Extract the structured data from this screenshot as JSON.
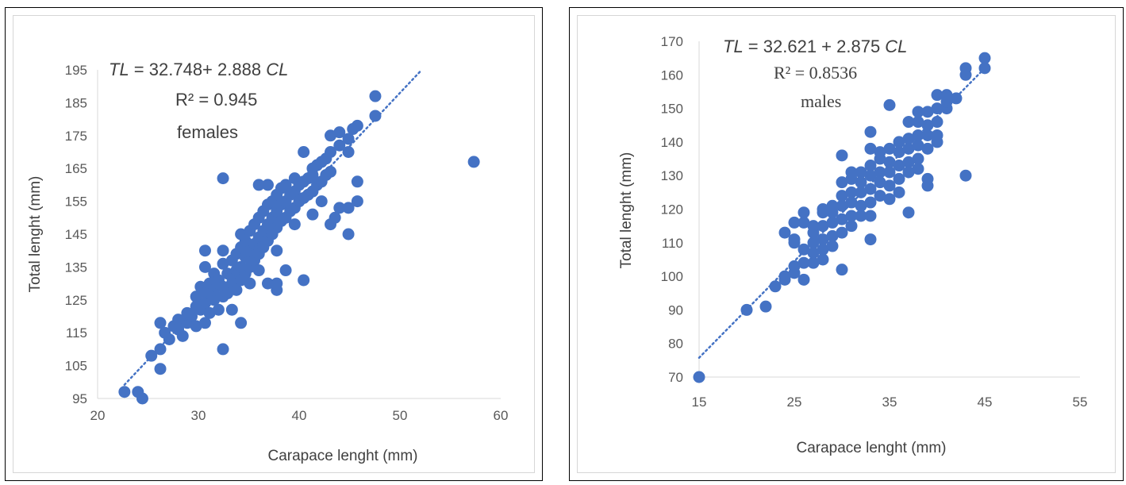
{
  "chart_data": [
    {
      "type": "scatter",
      "group": "females",
      "equation": {
        "prefix_var": "TL",
        "mid": " = 32.748+ 2.888 ",
        "suffix_var": "CL"
      },
      "r_squared": "R² = 0.945",
      "xlabel": "Carapace lenght (mm)",
      "ylabel": "Total lenght (mm)",
      "xlim": [
        20,
        65
      ],
      "ylim": [
        95,
        195
      ],
      "xticks": [
        "20",
        "30",
        "40",
        "50",
        "60"
      ],
      "yticks": [
        "95",
        "105",
        "115",
        "125",
        "135",
        "145",
        "155",
        "165",
        "175",
        "185",
        "195"
      ],
      "trendline": {
        "intercept": 32.748,
        "slope": 2.888,
        "x_range": [
          23,
          56
        ]
      },
      "color": "#4472c4",
      "points": [
        [
          23,
          97
        ],
        [
          24.5,
          97
        ],
        [
          25,
          95
        ],
        [
          26,
          108
        ],
        [
          27,
          104
        ],
        [
          27,
          110
        ],
        [
          27,
          118
        ],
        [
          27.5,
          115
        ],
        [
          28,
          113
        ],
        [
          28.5,
          117
        ],
        [
          29,
          116
        ],
        [
          29,
          119
        ],
        [
          29.5,
          114
        ],
        [
          30,
          118
        ],
        [
          30,
          121
        ],
        [
          30.5,
          120
        ],
        [
          31,
          117
        ],
        [
          31,
          123
        ],
        [
          31,
          126
        ],
        [
          31.5,
          122
        ],
        [
          31.5,
          129
        ],
        [
          32,
          118
        ],
        [
          32,
          124
        ],
        [
          32,
          127
        ],
        [
          32,
          135
        ],
        [
          32,
          140
        ],
        [
          32.5,
          121
        ],
        [
          32.5,
          130
        ],
        [
          33,
          125
        ],
        [
          33,
          128
        ],
        [
          33,
          133
        ],
        [
          33.5,
          122
        ],
        [
          33.5,
          131
        ],
        [
          34,
          126
        ],
        [
          34,
          129
        ],
        [
          34,
          136
        ],
        [
          34,
          140
        ],
        [
          34,
          110
        ],
        [
          34,
          162
        ],
        [
          34.5,
          127
        ],
        [
          34.5,
          133
        ],
        [
          35,
          130
        ],
        [
          35,
          132
        ],
        [
          35,
          137
        ],
        [
          35,
          122
        ],
        [
          35.5,
          128
        ],
        [
          35.5,
          134
        ],
        [
          35.5,
          139
        ],
        [
          36,
          131
        ],
        [
          36,
          135
        ],
        [
          36,
          141
        ],
        [
          36,
          118
        ],
        [
          36,
          145
        ],
        [
          36.5,
          133
        ],
        [
          36.5,
          138
        ],
        [
          36.5,
          143
        ],
        [
          37,
          135
        ],
        [
          37,
          140
        ],
        [
          37,
          146
        ],
        [
          37,
          130
        ],
        [
          37.5,
          137
        ],
        [
          37.5,
          142
        ],
        [
          37.5,
          148
        ],
        [
          38,
          139
        ],
        [
          38,
          144
        ],
        [
          38,
          150
        ],
        [
          38,
          134
        ],
        [
          38,
          160
        ],
        [
          38.5,
          141
        ],
        [
          38.5,
          146
        ],
        [
          38.5,
          152
        ],
        [
          39,
          143
        ],
        [
          39,
          148
        ],
        [
          39,
          154
        ],
        [
          39,
          130
        ],
        [
          39,
          160
        ],
        [
          39.5,
          145
        ],
        [
          39.5,
          150
        ],
        [
          39.5,
          155
        ],
        [
          40,
          147
        ],
        [
          40,
          152
        ],
        [
          40,
          157
        ],
        [
          40,
          128
        ],
        [
          40,
          130
        ],
        [
          40,
          140
        ],
        [
          40.5,
          149
        ],
        [
          40.5,
          154
        ],
        [
          40.5,
          159
        ],
        [
          41,
          150
        ],
        [
          41,
          155
        ],
        [
          41,
          160
        ],
        [
          41,
          134
        ],
        [
          41.5,
          152
        ],
        [
          41.5,
          157
        ],
        [
          42,
          153
        ],
        [
          42,
          158
        ],
        [
          42,
          162
        ],
        [
          42,
          148
        ],
        [
          42.5,
          155
        ],
        [
          42.5,
          160
        ],
        [
          43,
          156
        ],
        [
          43,
          161
        ],
        [
          43,
          131
        ],
        [
          43,
          170
        ],
        [
          43.5,
          157
        ],
        [
          43.5,
          162
        ],
        [
          44,
          158
        ],
        [
          44,
          163
        ],
        [
          44,
          165
        ],
        [
          44,
          151
        ],
        [
          44.5,
          160
        ],
        [
          44.5,
          166
        ],
        [
          45,
          161
        ],
        [
          45,
          167
        ],
        [
          45,
          155
        ],
        [
          45.5,
          163
        ],
        [
          45.5,
          168
        ],
        [
          46,
          164
        ],
        [
          46,
          170
        ],
        [
          46,
          148
        ],
        [
          46,
          175
        ],
        [
          46.5,
          150
        ],
        [
          47,
          172
        ],
        [
          47,
          176
        ],
        [
          47,
          153
        ],
        [
          48,
          145
        ],
        [
          48,
          153
        ],
        [
          48,
          170
        ],
        [
          48,
          174
        ],
        [
          48.5,
          177
        ],
        [
          49,
          155
        ],
        [
          49,
          161
        ],
        [
          49,
          178
        ],
        [
          51,
          181
        ],
        [
          51,
          187
        ],
        [
          62,
          167
        ]
      ]
    },
    {
      "type": "scatter",
      "group": "males",
      "equation": {
        "prefix_var": "TL",
        "mid": " = 32.621 + 2.875 ",
        "suffix_var": "CL"
      },
      "r_squared": "R² = 0.8536",
      "xlabel": "Carapace lenght (mm)",
      "ylabel": "Total lenght (mm)",
      "xlim": [
        15,
        55
      ],
      "ylim": [
        70,
        170
      ],
      "xticks": [
        "15",
        "25",
        "35",
        "45",
        "55"
      ],
      "yticks": [
        "70",
        "80",
        "90",
        "100",
        "110",
        "120",
        "130",
        "140",
        "150",
        "160",
        "170"
      ],
      "trendline": {
        "intercept": 32.621,
        "slope": 2.875,
        "x_range": [
          15,
          45
        ]
      },
      "color": "#4472c4",
      "points": [
        [
          15,
          70
        ],
        [
          20,
          90
        ],
        [
          22,
          91
        ],
        [
          23,
          97
        ],
        [
          24,
          99
        ],
        [
          24,
          100
        ],
        [
          24,
          113
        ],
        [
          25,
          101
        ],
        [
          25,
          103
        ],
        [
          25,
          110
        ],
        [
          25,
          111
        ],
        [
          25,
          116
        ],
        [
          26,
          99
        ],
        [
          26,
          104
        ],
        [
          26,
          108
        ],
        [
          26,
          116
        ],
        [
          26,
          119
        ],
        [
          27,
          104
        ],
        [
          27,
          107
        ],
        [
          27,
          110
        ],
        [
          27,
          113
        ],
        [
          27,
          115
        ],
        [
          28,
          105
        ],
        [
          28,
          108
        ],
        [
          28,
          111
        ],
        [
          28,
          115
        ],
        [
          28,
          119
        ],
        [
          28,
          120
        ],
        [
          29,
          109
        ],
        [
          29,
          112
        ],
        [
          29,
          116
        ],
        [
          29,
          119
        ],
        [
          29,
          121
        ],
        [
          30,
          102
        ],
        [
          30,
          113
        ],
        [
          30,
          117
        ],
        [
          30,
          121
        ],
        [
          30,
          124
        ],
        [
          30,
          128
        ],
        [
          30,
          136
        ],
        [
          31,
          115
        ],
        [
          31,
          118
        ],
        [
          31,
          122
        ],
        [
          31,
          125
        ],
        [
          31,
          129
        ],
        [
          31,
          131
        ],
        [
          32,
          118
        ],
        [
          32,
          121
        ],
        [
          32,
          125
        ],
        [
          32,
          128
        ],
        [
          32,
          131
        ],
        [
          33,
          111
        ],
        [
          33,
          118
        ],
        [
          33,
          122
        ],
        [
          33,
          126
        ],
        [
          33,
          130
        ],
        [
          33,
          133
        ],
        [
          33,
          138
        ],
        [
          33,
          143
        ],
        [
          34,
          124
        ],
        [
          34,
          128
        ],
        [
          34,
          131
        ],
        [
          34,
          135
        ],
        [
          34,
          137
        ],
        [
          35,
          123
        ],
        [
          35,
          127
        ],
        [
          35,
          131
        ],
        [
          35,
          134
        ],
        [
          35,
          138
        ],
        [
          35,
          151
        ],
        [
          36,
          125
        ],
        [
          36,
          129
        ],
        [
          36,
          133
        ],
        [
          36,
          137
        ],
        [
          36,
          140
        ],
        [
          37,
          119
        ],
        [
          37,
          131
        ],
        [
          37,
          134
        ],
        [
          37,
          138
        ],
        [
          37,
          141
        ],
        [
          37,
          146
        ],
        [
          38,
          132
        ],
        [
          38,
          135
        ],
        [
          38,
          139
        ],
        [
          38,
          142
        ],
        [
          38,
          146
        ],
        [
          38,
          149
        ],
        [
          39,
          127
        ],
        [
          39,
          129
        ],
        [
          39,
          138
        ],
        [
          39,
          142
        ],
        [
          39,
          145
        ],
        [
          39,
          149
        ],
        [
          40,
          140
        ],
        [
          40,
          142
        ],
        [
          40,
          146
        ],
        [
          40,
          150
        ],
        [
          40,
          154
        ],
        [
          41,
          150
        ],
        [
          41,
          152
        ],
        [
          41,
          154
        ],
        [
          42,
          153
        ],
        [
          43,
          130
        ],
        [
          43,
          160
        ],
        [
          43,
          162
        ],
        [
          45,
          162
        ],
        [
          45,
          165
        ]
      ]
    }
  ]
}
